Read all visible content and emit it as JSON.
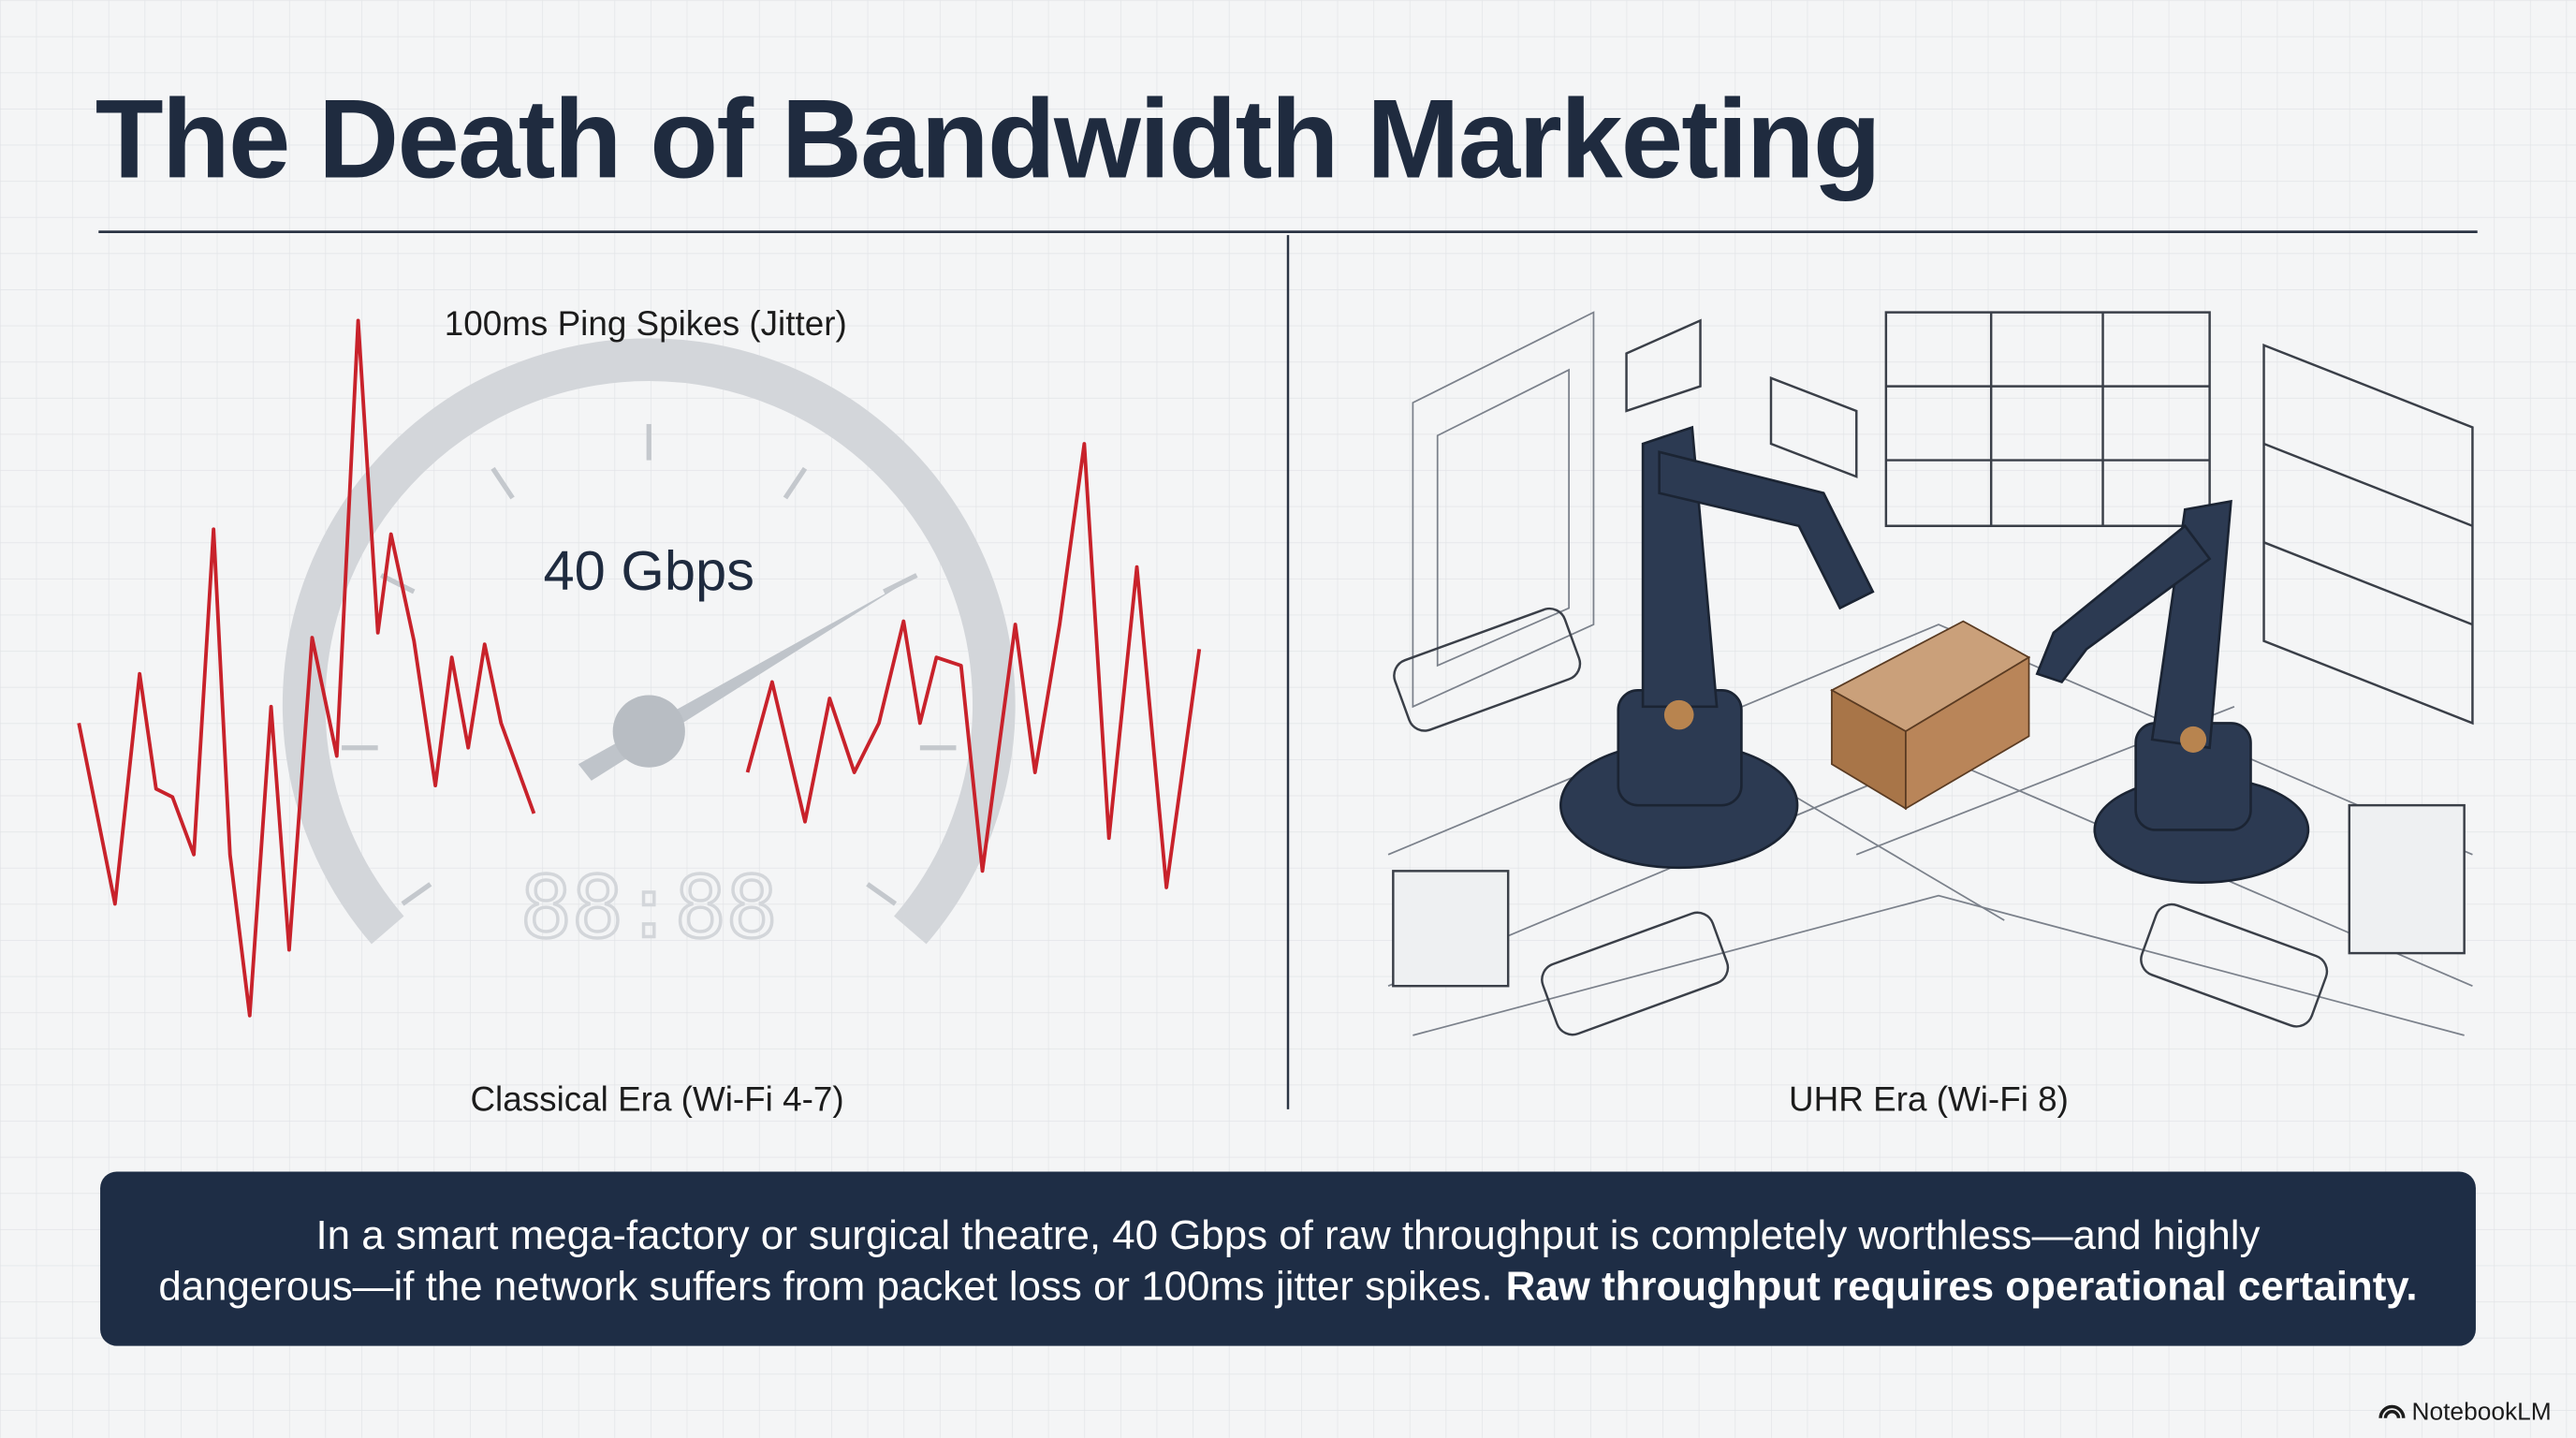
{
  "header": {
    "title": "The Death of Bandwidth Marketing"
  },
  "left_panel": {
    "annotation": "100ms Ping Spikes (Jitter)",
    "gauge_reading": "40 Gbps",
    "display": "88:88",
    "caption": "Classical Era (Wi-Fi 4-7)"
  },
  "right_panel": {
    "caption": "UHR Era (Wi-Fi 8)"
  },
  "callout": {
    "lines": [
      "In a smart mega-factory or surgical theatre, 40 Gbps of raw throughput is completely worthless—and highly",
      "dangerous—if the network suffers from packet loss or 100ms jitter spikes."
    ],
    "emphasis": "Raw throughput requires operational certainty."
  },
  "footer": {
    "brand": "NotebookLM"
  }
}
